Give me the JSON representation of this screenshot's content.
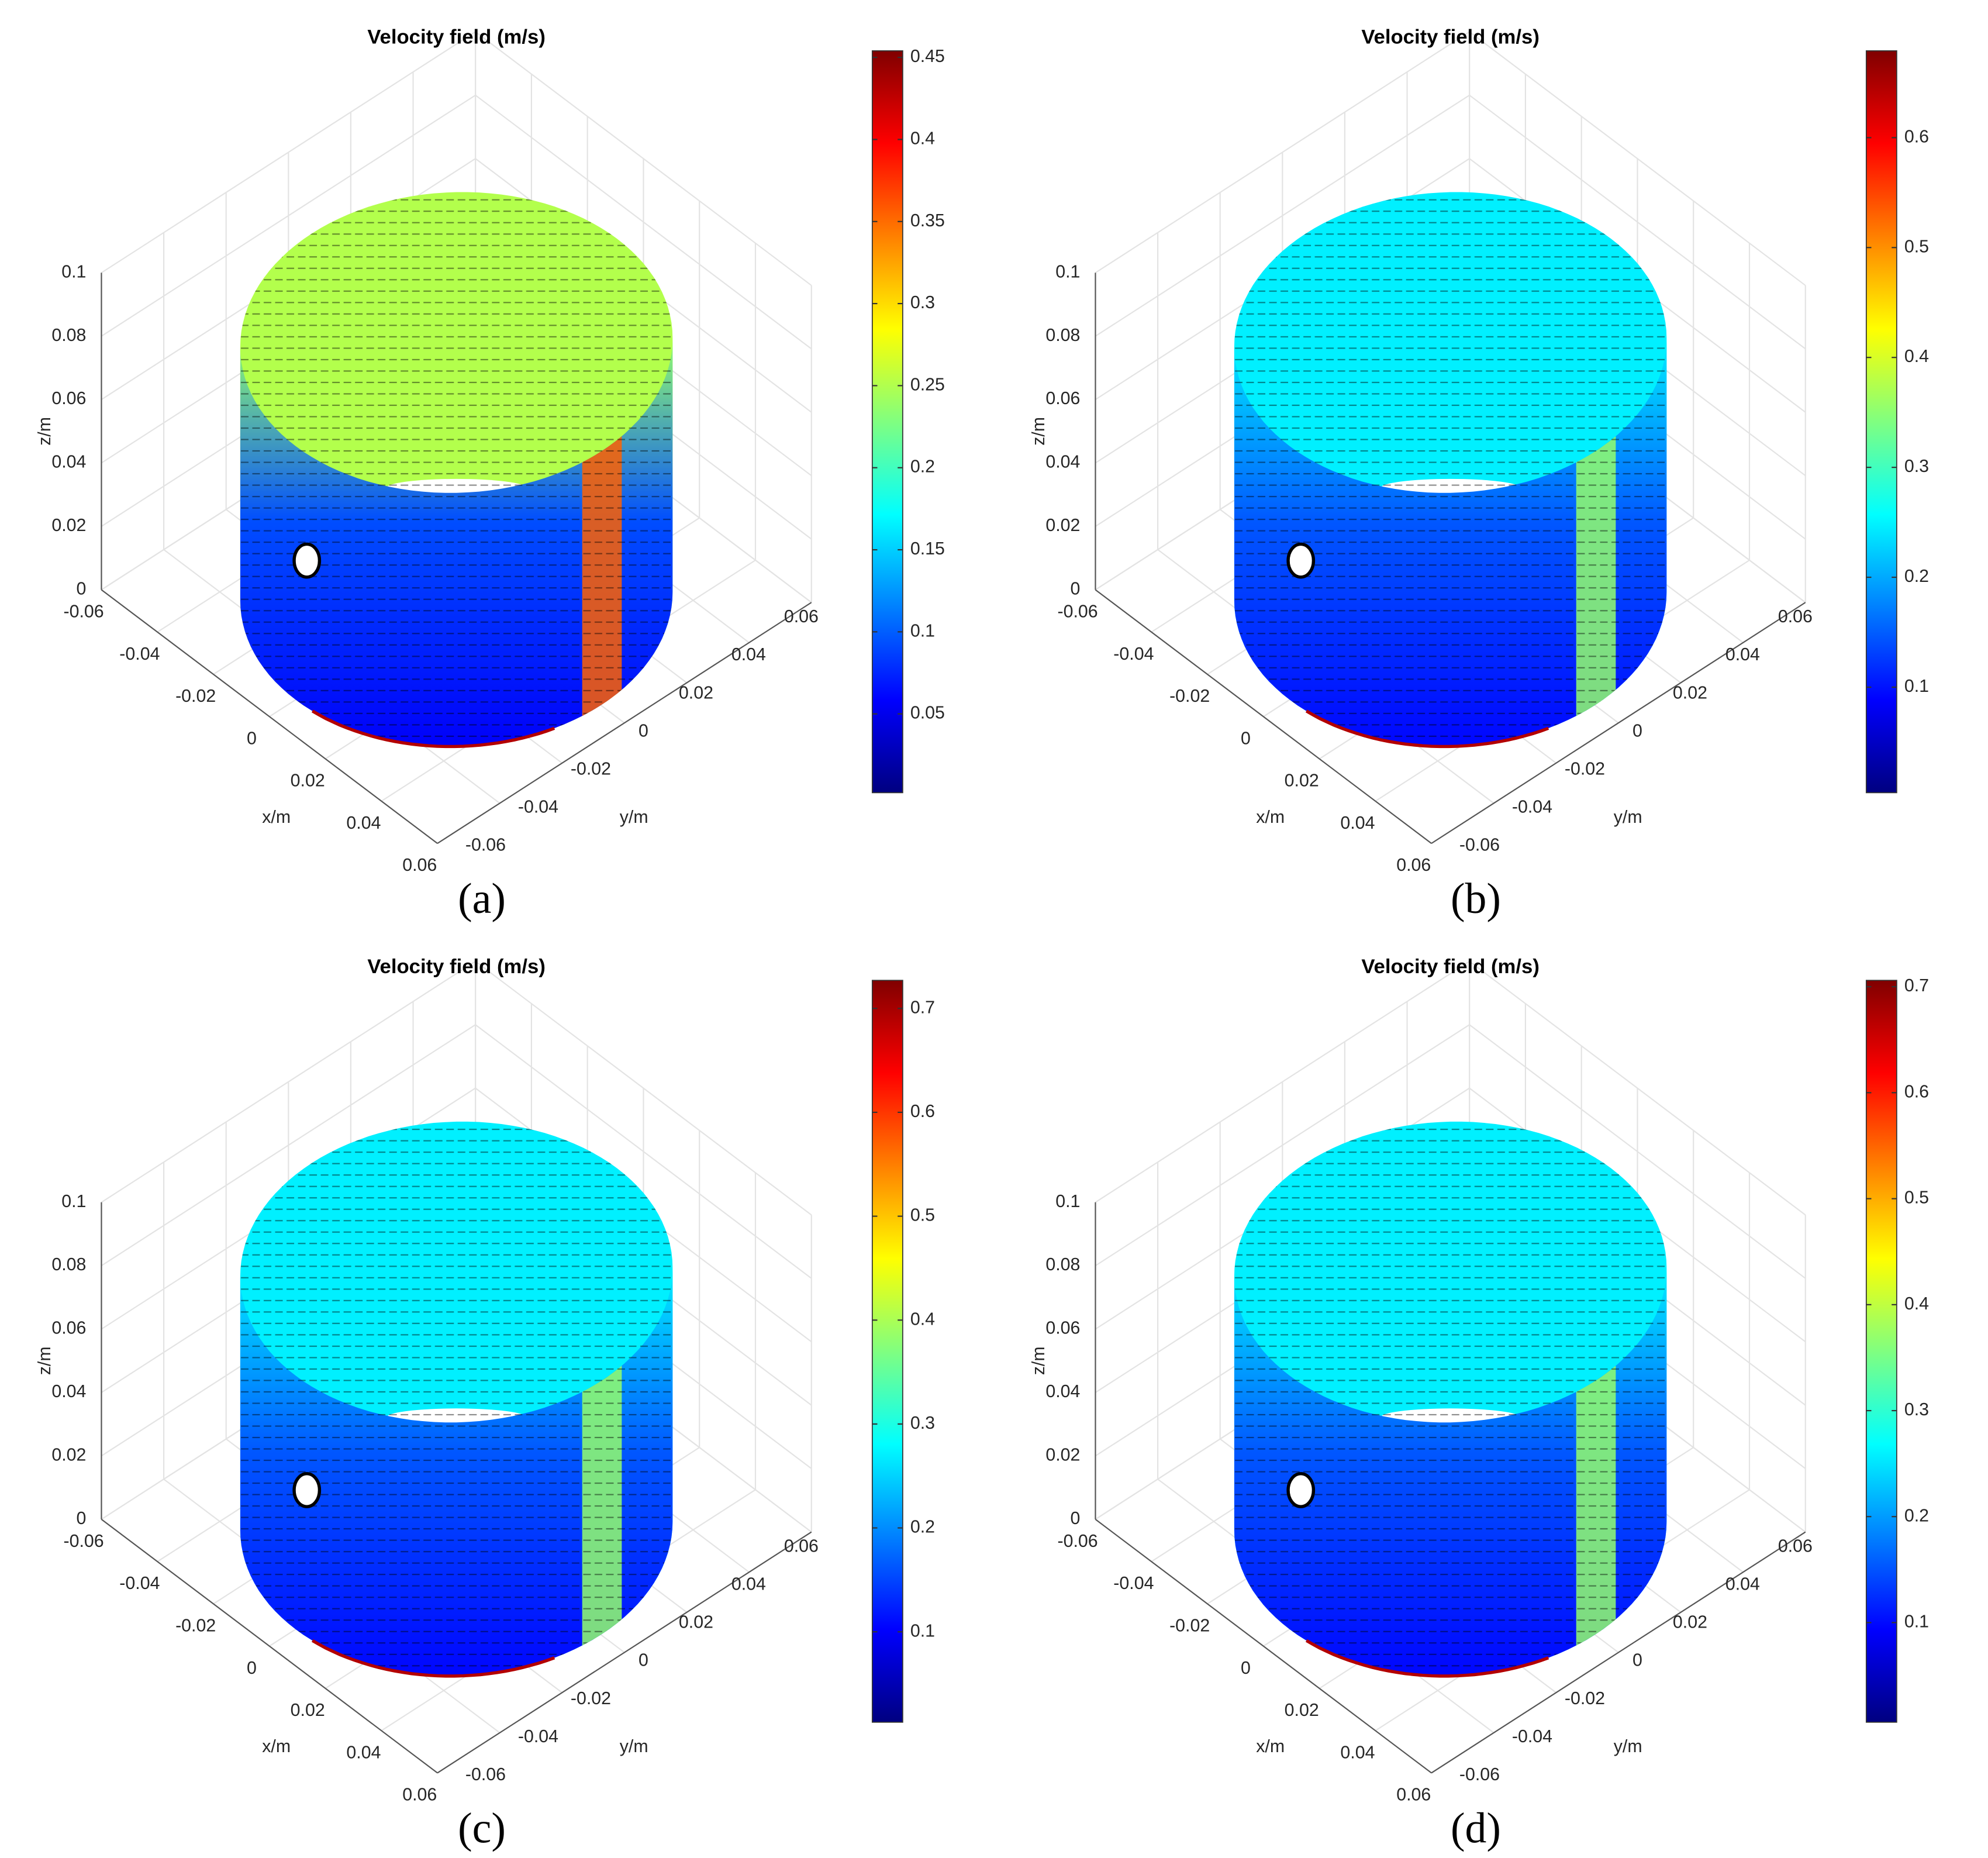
{
  "chart_data": [
    {
      "type": "surface",
      "title": "Velocity field (m/s)",
      "panel_label": "(a)",
      "xlabel": "x/m",
      "ylabel": "y/m",
      "zlabel": "z/m",
      "xlim": [
        -0.06,
        0.06
      ],
      "xticks": [
        -0.06,
        -0.04,
        -0.02,
        0,
        0.02,
        0.04,
        0.06
      ],
      "ylim": [
        -0.06,
        0.06
      ],
      "yticks": [
        -0.06,
        -0.04,
        -0.02,
        0,
        0.02,
        0.04,
        0.06
      ],
      "zlim": [
        0,
        0.1
      ],
      "zticks": [
        0,
        0.02,
        0.04,
        0.06,
        0.08,
        0.1
      ],
      "colormap": "jet",
      "clim": [
        0.002,
        0.454
      ],
      "cticks": [
        0.05,
        0.1,
        0.15,
        0.2,
        0.25,
        0.3,
        0.35,
        0.4,
        0.45
      ],
      "grid": true
    },
    {
      "type": "surface",
      "title": "Velocity field (m/s)",
      "panel_label": "(b)",
      "xlabel": "x/m",
      "ylabel": "y/m",
      "zlabel": "z/m",
      "xlim": [
        -0.06,
        0.06
      ],
      "xticks": [
        -0.06,
        -0.04,
        -0.02,
        0,
        0.02,
        0.04,
        0.06
      ],
      "ylim": [
        -0.06,
        0.06
      ],
      "yticks": [
        -0.06,
        -0.04,
        -0.02,
        0,
        0.02,
        0.04,
        0.06
      ],
      "zlim": [
        0,
        0.1
      ],
      "zticks": [
        0,
        0.02,
        0.04,
        0.06,
        0.08,
        0.1
      ],
      "colormap": "jet",
      "clim": [
        0.004,
        0.679
      ],
      "cticks": [
        0.1,
        0.2,
        0.3,
        0.4,
        0.5,
        0.6
      ],
      "grid": true
    },
    {
      "type": "surface",
      "title": "Velocity field (m/s)",
      "panel_label": "(c)",
      "xlabel": "x/m",
      "ylabel": "y/m",
      "zlabel": "z/m",
      "xlim": [
        -0.06,
        0.06
      ],
      "xticks": [
        -0.06,
        -0.04,
        -0.02,
        0,
        0.02,
        0.04,
        0.06
      ],
      "ylim": [
        -0.06,
        0.06
      ],
      "yticks": [
        -0.06,
        -0.04,
        -0.02,
        0,
        0.02,
        0.04,
        0.06
      ],
      "zlim": [
        0,
        0.1
      ],
      "zticks": [
        0,
        0.02,
        0.04,
        0.06,
        0.08,
        0.1
      ],
      "colormap": "jet",
      "clim": [
        0.013,
        0.727
      ],
      "cticks": [
        0.1,
        0.2,
        0.3,
        0.4,
        0.5,
        0.6,
        0.7
      ],
      "grid": true
    },
    {
      "type": "surface",
      "title": "Velocity field (m/s)",
      "panel_label": "(d)",
      "xlabel": "x/m",
      "ylabel": "y/m",
      "zlabel": "z/m",
      "xlim": [
        -0.06,
        0.06
      ],
      "xticks": [
        -0.06,
        -0.04,
        -0.02,
        0,
        0.02,
        0.04,
        0.06
      ],
      "ylim": [
        -0.06,
        0.06
      ],
      "yticks": [
        -0.06,
        -0.04,
        -0.02,
        0,
        0.02,
        0.04,
        0.06
      ],
      "zlim": [
        0,
        0.1
      ],
      "zticks": [
        0,
        0.02,
        0.04,
        0.06,
        0.08,
        0.1
      ],
      "colormap": "jet",
      "clim": [
        0.006,
        0.706
      ],
      "cticks": [
        0.1,
        0.2,
        0.3,
        0.4,
        0.5,
        0.6,
        0.7
      ],
      "grid": true
    }
  ]
}
